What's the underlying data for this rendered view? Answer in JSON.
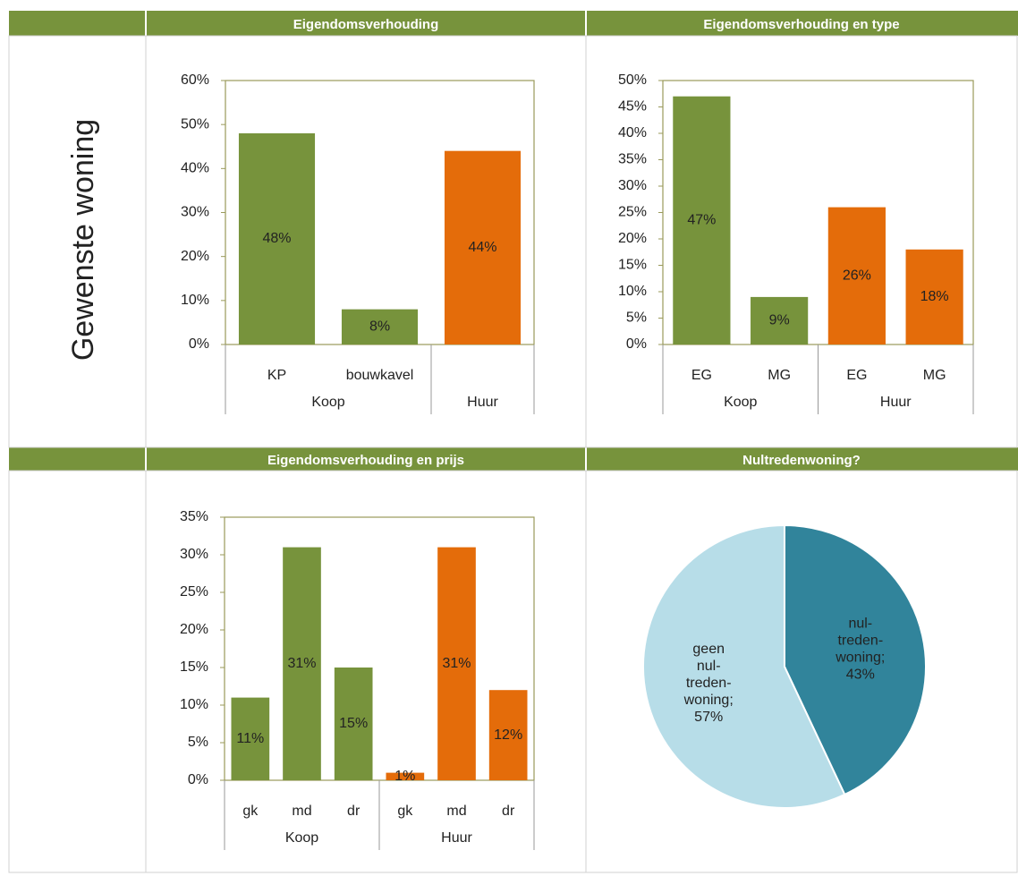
{
  "row_label": "Gewenste woning",
  "chart_data": [
    {
      "type": "bar",
      "title": "Eigendomsverhouding",
      "ylim": [
        0,
        60
      ],
      "yticks": [
        {
          "value": 0,
          "label": "0%"
        },
        {
          "value": 10,
          "label": "10%"
        },
        {
          "value": 20,
          "label": "20%"
        },
        {
          "value": 30,
          "label": "30%"
        },
        {
          "value": 40,
          "label": "40%"
        },
        {
          "value": 50,
          "label": "50%"
        },
        {
          "value": 60,
          "label": "60%"
        }
      ],
      "groups": [
        {
          "name": "Koop",
          "color": "#77933c",
          "categories": [
            "KP",
            "bouwkavel"
          ],
          "values": [
            48,
            8
          ],
          "value_labels": [
            "48%",
            "8%"
          ]
        },
        {
          "name": "Huur",
          "color": "#e46c0a",
          "categories": [
            null
          ],
          "values": [
            44
          ],
          "value_labels": [
            "44%"
          ]
        }
      ]
    },
    {
      "type": "bar",
      "title": "Eigendomsverhouding en type",
      "ylim": [
        0,
        50
      ],
      "yticks": [
        {
          "value": 0,
          "label": "0%"
        },
        {
          "value": 5,
          "label": "5%"
        },
        {
          "value": 10,
          "label": "10%"
        },
        {
          "value": 15,
          "label": "15%"
        },
        {
          "value": 20,
          "label": "20%"
        },
        {
          "value": 25,
          "label": "25%"
        },
        {
          "value": 30,
          "label": "30%"
        },
        {
          "value": 35,
          "label": "35%"
        },
        {
          "value": 40,
          "label": "40%"
        },
        {
          "value": 45,
          "label": "45%"
        },
        {
          "value": 50,
          "label": "50%"
        }
      ],
      "groups": [
        {
          "name": "Koop",
          "color": "#77933c",
          "categories": [
            "EG",
            "MG"
          ],
          "values": [
            47,
            9
          ],
          "value_labels": [
            "47%",
            "9%"
          ]
        },
        {
          "name": "Huur",
          "color": "#e46c0a",
          "categories": [
            "EG",
            "MG"
          ],
          "values": [
            26,
            18
          ],
          "value_labels": [
            "26%",
            "18%"
          ]
        }
      ]
    },
    {
      "type": "bar",
      "title": "Eigendomsverhouding en prijs",
      "ylim": [
        0,
        35
      ],
      "yticks": [
        {
          "value": 0,
          "label": "0%"
        },
        {
          "value": 5,
          "label": "5%"
        },
        {
          "value": 10,
          "label": "10%"
        },
        {
          "value": 15,
          "label": "15%"
        },
        {
          "value": 20,
          "label": "20%"
        },
        {
          "value": 25,
          "label": "25%"
        },
        {
          "value": 30,
          "label": "30%"
        },
        {
          "value": 35,
          "label": "35%"
        }
      ],
      "groups": [
        {
          "name": "Koop",
          "color": "#77933c",
          "categories": [
            "gk",
            "md",
            "dr"
          ],
          "values": [
            11,
            31,
            15
          ],
          "value_labels": [
            "11%",
            "31%",
            "15%"
          ]
        },
        {
          "name": "Huur",
          "color": "#e46c0a",
          "categories": [
            "gk",
            "md",
            "dr"
          ],
          "values": [
            1,
            31,
            12
          ],
          "value_labels": [
            "1%",
            "31%",
            "12%"
          ]
        }
      ]
    },
    {
      "type": "pie",
      "title": "Nultredenwoning?",
      "labels": [
        [
          "nul-",
          "treden-",
          "woning;"
        ],
        [
          "geen",
          "nul-",
          "treden-",
          "woning;"
        ]
      ],
      "values": [
        43,
        57
      ],
      "value_labels": [
        "43%",
        "57%"
      ],
      "colors": [
        "#31849b",
        "#b7dde8"
      ]
    }
  ]
}
